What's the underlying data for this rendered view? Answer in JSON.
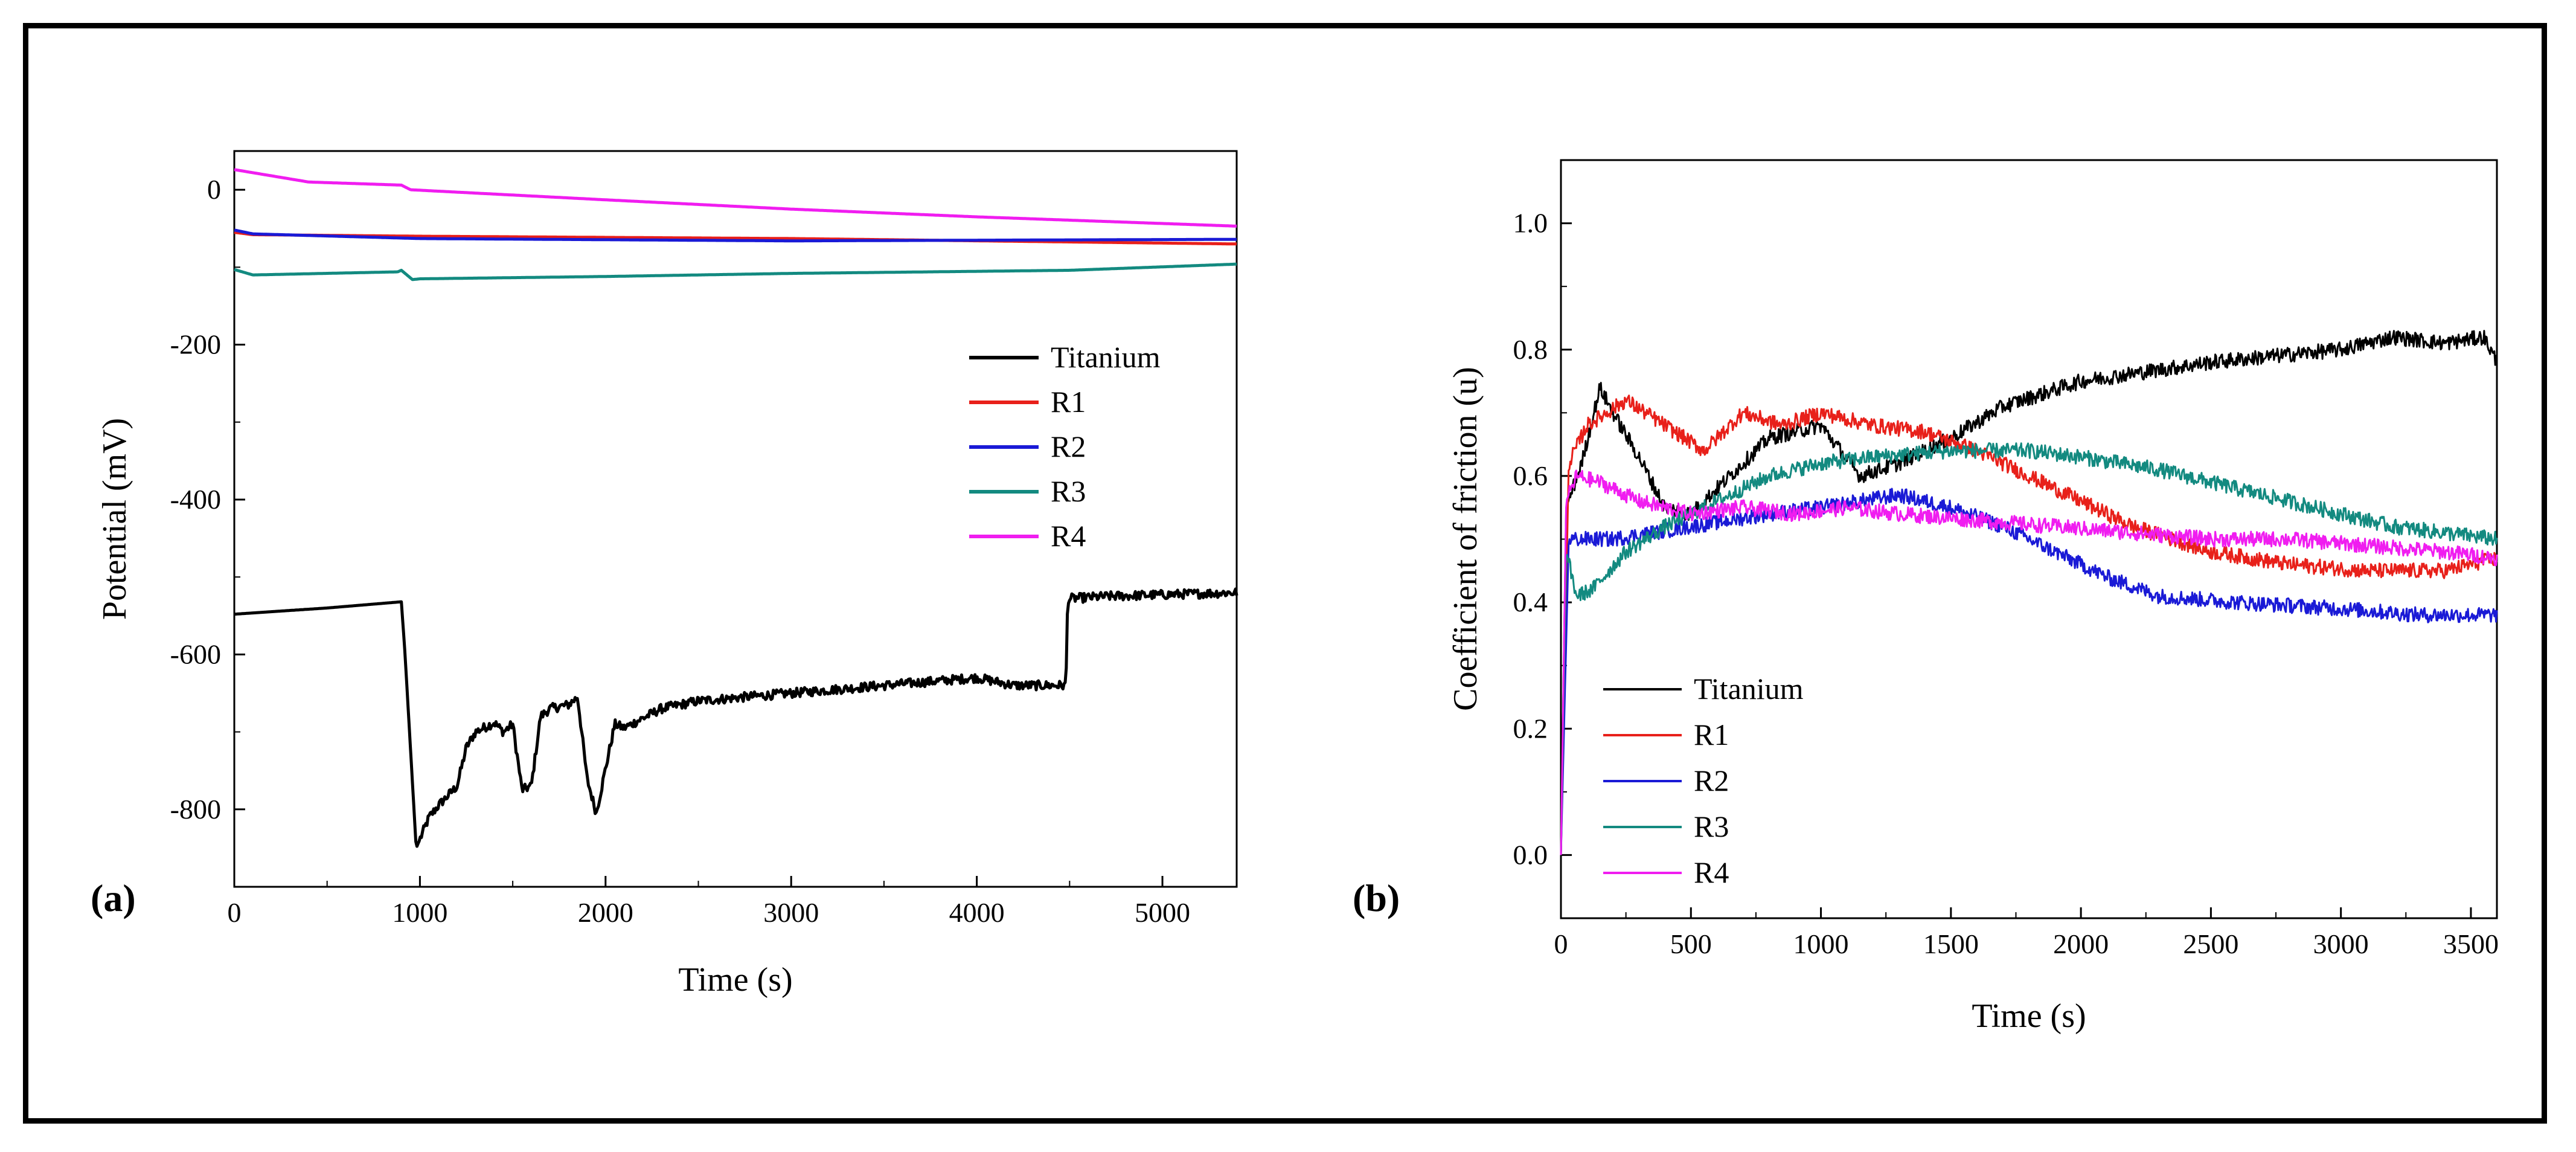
{
  "chart_data": [
    {
      "panel_label": "(a)",
      "type": "line",
      "title": "",
      "xlabel": "Time (s)",
      "ylabel": "Potential (mV)",
      "xlim": [
        0,
        5400
      ],
      "ylim": [
        -900,
        50
      ],
      "xticks": [
        0,
        1000,
        2000,
        3000,
        4000,
        5000
      ],
      "yticks": [
        -800,
        -600,
        -400,
        -200,
        0
      ],
      "xtick_labels": [
        "0",
        "1000",
        "2000",
        "3000",
        "4000",
        "5000"
      ],
      "ytick_labels": [
        "-800",
        "-600",
        "-400",
        "-200",
        "0"
      ],
      "legend": [
        "Titanium",
        "R1",
        "R2",
        "R3",
        "R4"
      ],
      "series": [
        {
          "name": "Titanium",
          "color": "#000000",
          "x": [
            0,
            500,
            900,
            920,
            980,
            1050,
            1100,
            1200,
            1250,
            1300,
            1400,
            1450,
            1500,
            1550,
            1600,
            1650,
            1700,
            1800,
            1850,
            1900,
            1950,
            2050,
            2100,
            2300,
            2500,
            3000,
            3500,
            4000,
            4200,
            4480,
            4490,
            4700,
            5400
          ],
          "y": [
            -548,
            -540,
            -532,
            -600,
            -850,
            -810,
            -795,
            -770,
            -720,
            -700,
            -688,
            -700,
            -690,
            -775,
            -770,
            -680,
            -670,
            -665,
            -655,
            -760,
            -805,
            -690,
            -695,
            -670,
            -660,
            -650,
            -640,
            -630,
            -640,
            -640,
            -528,
            -525,
            -520
          ]
        },
        {
          "name": "R1",
          "color": "#e8201a",
          "x": [
            0,
            100,
            1000,
            3000,
            5400
          ],
          "y": [
            -55,
            -58,
            -60,
            -63,
            -70
          ]
        },
        {
          "name": "R2",
          "color": "#1a1ad6",
          "x": [
            0,
            100,
            1000,
            3000,
            5400
          ],
          "y": [
            -52,
            -57,
            -63,
            -66,
            -64
          ]
        },
        {
          "name": "R3",
          "color": "#138a80",
          "x": [
            0,
            100,
            880,
            900,
            960,
            1000,
            2000,
            3000,
            4500,
            5400
          ],
          "y": [
            -103,
            -110,
            -106,
            -104,
            -116,
            -115,
            -112,
            -108,
            -104,
            -96
          ]
        },
        {
          "name": "R4",
          "color": "#f01df0",
          "x": [
            0,
            400,
            900,
            950,
            2000,
            3000,
            4000,
            5400
          ],
          "y": [
            26,
            10,
            6,
            0,
            -13,
            -25,
            -35,
            -47
          ]
        }
      ]
    },
    {
      "panel_label": "(b)",
      "type": "line",
      "title": "",
      "xlabel": "Time (s)",
      "ylabel": "Coefficient of friction (u)",
      "xlim": [
        0,
        3600
      ],
      "ylim": [
        -0.1,
        1.1
      ],
      "xticks": [
        0,
        500,
        1000,
        1500,
        2000,
        2500,
        3000,
        3500
      ],
      "yticks": [
        0.0,
        0.2,
        0.4,
        0.6,
        0.8,
        1.0
      ],
      "xtick_labels": [
        "0",
        "500",
        "1000",
        "1500",
        "2000",
        "2500",
        "3000",
        "3500"
      ],
      "ytick_labels": [
        "0.0",
        "0.2",
        "0.4",
        "0.6",
        "0.8",
        "1.0"
      ],
      "legend": [
        "Titanium",
        "R1",
        "R2",
        "R3",
        "R4"
      ],
      "series": [
        {
          "name": "Titanium",
          "color": "#000000",
          "x": [
            0,
            20,
            80,
            150,
            200,
            300,
            400,
            500,
            650,
            800,
            1000,
            1150,
            1300,
            1500,
            1700,
            2000,
            2500,
            3000,
            3200,
            3400,
            3550,
            3600
          ],
          "y": [
            0.0,
            0.55,
            0.62,
            0.74,
            0.7,
            0.63,
            0.55,
            0.54,
            0.6,
            0.66,
            0.68,
            0.6,
            0.62,
            0.66,
            0.71,
            0.75,
            0.78,
            0.8,
            0.82,
            0.81,
            0.82,
            0.78
          ]
        },
        {
          "name": "R1",
          "color": "#e8201a",
          "x": [
            0,
            30,
            100,
            250,
            400,
            550,
            700,
            850,
            1000,
            1200,
            1400,
            1600,
            1800,
            2000,
            2200,
            2500,
            2800,
            3100,
            3400,
            3600
          ],
          "y": [
            0.0,
            0.62,
            0.68,
            0.72,
            0.68,
            0.64,
            0.7,
            0.68,
            0.7,
            0.68,
            0.67,
            0.64,
            0.6,
            0.56,
            0.52,
            0.48,
            0.46,
            0.45,
            0.45,
            0.47
          ]
        },
        {
          "name": "R2",
          "color": "#1a1ad6",
          "x": [
            0,
            30,
            200,
            500,
            800,
            1000,
            1300,
            1500,
            1700,
            1900,
            2100,
            2300,
            2600,
            3000,
            3300,
            3600
          ],
          "y": [
            0.0,
            0.5,
            0.5,
            0.52,
            0.54,
            0.55,
            0.57,
            0.55,
            0.52,
            0.48,
            0.44,
            0.41,
            0.4,
            0.39,
            0.38,
            0.38
          ]
        },
        {
          "name": "R3",
          "color": "#138a80",
          "x": [
            0,
            20,
            60,
            120,
            250,
            400,
            600,
            800,
            1000,
            1200,
            1500,
            1800,
            2000,
            2300,
            2600,
            2900,
            3200,
            3400,
            3600
          ],
          "y": [
            0.0,
            0.48,
            0.41,
            0.42,
            0.48,
            0.52,
            0.56,
            0.6,
            0.62,
            0.63,
            0.64,
            0.64,
            0.63,
            0.61,
            0.58,
            0.55,
            0.52,
            0.51,
            0.5
          ]
        },
        {
          "name": "R4",
          "color": "#f01df0",
          "x": [
            0,
            20,
            60,
            150,
            300,
            500,
            700,
            900,
            1100,
            1300,
            1600,
            1900,
            2200,
            2500,
            2800,
            3100,
            3400,
            3600
          ],
          "y": [
            0.0,
            0.56,
            0.6,
            0.59,
            0.56,
            0.54,
            0.55,
            0.54,
            0.55,
            0.54,
            0.53,
            0.52,
            0.51,
            0.5,
            0.5,
            0.49,
            0.48,
            0.47
          ]
        }
      ]
    }
  ]
}
